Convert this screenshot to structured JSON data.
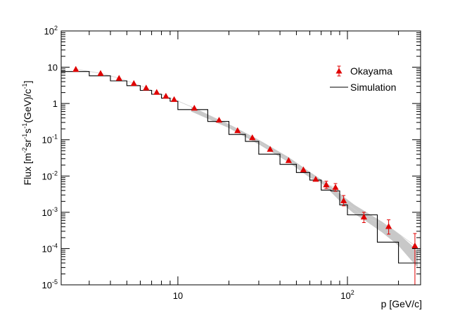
{
  "chart_data": {
    "type": "scatter",
    "xlabel": "p [GeV/c]",
    "ylabel_parts": {
      "a": "Flux [m",
      "e1": "-2",
      "b": "sr",
      "e2": "-1",
      "c": "s",
      "e3": "-1",
      "d": "(GeV)/c",
      "e4": "-1",
      "f": "]"
    },
    "x_scale": "log",
    "y_scale": "log",
    "xlim": [
      2.05,
      270
    ],
    "ylim": [
      1e-05,
      100
    ],
    "grid": false,
    "legend_position": "top-right",
    "x_ticks": [
      {
        "value": 10,
        "base": "10",
        "exp": ""
      },
      {
        "value": 100,
        "base": "10",
        "exp": "2"
      }
    ],
    "y_ticks": [
      {
        "value": 1e-05,
        "base": "10",
        "exp": "-5"
      },
      {
        "value": 0.0001,
        "base": "10",
        "exp": "-4"
      },
      {
        "value": 0.001,
        "base": "10",
        "exp": "-3"
      },
      {
        "value": 0.01,
        "base": "10",
        "exp": "-2"
      },
      {
        "value": 0.1,
        "base": "10",
        "exp": "-1"
      },
      {
        "value": 1,
        "base": "1",
        "exp": ""
      },
      {
        "value": 10,
        "base": "10",
        "exp": ""
      },
      {
        "value": 100,
        "base": "10",
        "exp": "2"
      }
    ],
    "series": [
      {
        "name": "Okayama",
        "kind": "points",
        "color": "#e00000",
        "marker": "triangle",
        "points": [
          {
            "x": 2.5,
            "y": 8.8
          },
          {
            "x": 3.5,
            "y": 6.8
          },
          {
            "x": 4.5,
            "y": 5.0
          },
          {
            "x": 5.5,
            "y": 3.6
          },
          {
            "x": 6.5,
            "y": 2.7
          },
          {
            "x": 7.5,
            "y": 2.05
          },
          {
            "x": 8.5,
            "y": 1.6
          },
          {
            "x": 9.5,
            "y": 1.3
          },
          {
            "x": 12.5,
            "y": 0.75
          },
          {
            "x": 17.5,
            "y": 0.35
          },
          {
            "x": 22.5,
            "y": 0.18
          },
          {
            "x": 27.5,
            "y": 0.115
          },
          {
            "x": 35,
            "y": 0.055
          },
          {
            "x": 45,
            "y": 0.027
          },
          {
            "x": 55,
            "y": 0.015
          },
          {
            "x": 65,
            "y": 0.0082
          },
          {
            "x": 75,
            "y": 0.0058,
            "ylo": 0.0045,
            "yhi": 0.0072
          },
          {
            "x": 85,
            "y": 0.0049,
            "ylo": 0.0038,
            "yhi": 0.0062
          },
          {
            "x": 95,
            "y": 0.0021,
            "ylo": 0.0015,
            "yhi": 0.0029
          },
          {
            "x": 125,
            "y": 0.00075,
            "ylo": 0.00052,
            "yhi": 0.001
          },
          {
            "x": 175,
            "y": 0.00041,
            "ylo": 0.00025,
            "yhi": 0.00062
          },
          {
            "x": 250,
            "y": 0.00012,
            "ylo": 1e-05,
            "yhi": 0.00026
          }
        ]
      },
      {
        "name": "Simulation",
        "kind": "step",
        "color": "#000000",
        "bins": [
          {
            "x0": 2.05,
            "x1": 3.0,
            "y": 7.6
          },
          {
            "x0": 3.0,
            "x1": 4.0,
            "y": 5.8
          },
          {
            "x0": 4.0,
            "x1": 5.0,
            "y": 4.2
          },
          {
            "x0": 5.0,
            "x1": 6.0,
            "y": 3.1
          },
          {
            "x0": 6.0,
            "x1": 7.0,
            "y": 2.3
          },
          {
            "x0": 7.0,
            "x1": 8.0,
            "y": 1.8
          },
          {
            "x0": 8.0,
            "x1": 9.0,
            "y": 1.4
          },
          {
            "x0": 9.0,
            "x1": 10.0,
            "y": 1.15
          },
          {
            "x0": 10.0,
            "x1": 15.0,
            "y": 0.68
          },
          {
            "x0": 15.0,
            "x1": 20.0,
            "y": 0.32
          },
          {
            "x0": 20.0,
            "x1": 25.0,
            "y": 0.14
          },
          {
            "x0": 25.0,
            "x1": 30.0,
            "y": 0.09
          },
          {
            "x0": 30.0,
            "x1": 40.0,
            "y": 0.04
          },
          {
            "x0": 40.0,
            "x1": 50.0,
            "y": 0.021
          },
          {
            "x0": 50.0,
            "x1": 60.0,
            "y": 0.0125
          },
          {
            "x0": 60.0,
            "x1": 70.0,
            "y": 0.0077
          },
          {
            "x0": 70.0,
            "x1": 80.0,
            "y": 0.0041
          },
          {
            "x0": 80.0,
            "x1": 90.0,
            "y": 0.0039
          },
          {
            "x0": 90.0,
            "x1": 100.0,
            "y": 0.0016
          },
          {
            "x0": 100.0,
            "x1": 150.0,
            "y": 0.00085
          },
          {
            "x0": 150.0,
            "x1": 200.0,
            "y": 0.00015
          },
          {
            "x0": 200.0,
            "x1": 270.0,
            "y": 4e-05
          }
        ],
        "band": [
          {
            "x": 12,
            "lo": 0.6,
            "hi": 0.8
          },
          {
            "x": 20,
            "lo": 0.21,
            "hi": 0.27
          },
          {
            "x": 30,
            "lo": 0.075,
            "hi": 0.1
          },
          {
            "x": 45,
            "lo": 0.024,
            "hi": 0.033
          },
          {
            "x": 60,
            "lo": 0.009,
            "hi": 0.013
          },
          {
            "x": 70,
            "lo": 0.0065,
            "hi": 0.008
          },
          {
            "x": 80,
            "lo": 0.0036,
            "hi": 0.0052
          },
          {
            "x": 95,
            "lo": 0.0016,
            "hi": 0.0027
          },
          {
            "x": 110,
            "lo": 0.0009,
            "hi": 0.0016
          },
          {
            "x": 130,
            "lo": 0.00055,
            "hi": 0.001
          },
          {
            "x": 160,
            "lo": 0.00028,
            "hi": 0.00055
          },
          {
            "x": 200,
            "lo": 0.00012,
            "hi": 0.00026
          },
          {
            "x": 240,
            "lo": 4.5e-05,
            "hi": 0.00012
          },
          {
            "x": 260,
            "lo": 3e-05,
            "hi": 8e-05
          }
        ],
        "band_color": "#c8c8c8"
      }
    ]
  }
}
